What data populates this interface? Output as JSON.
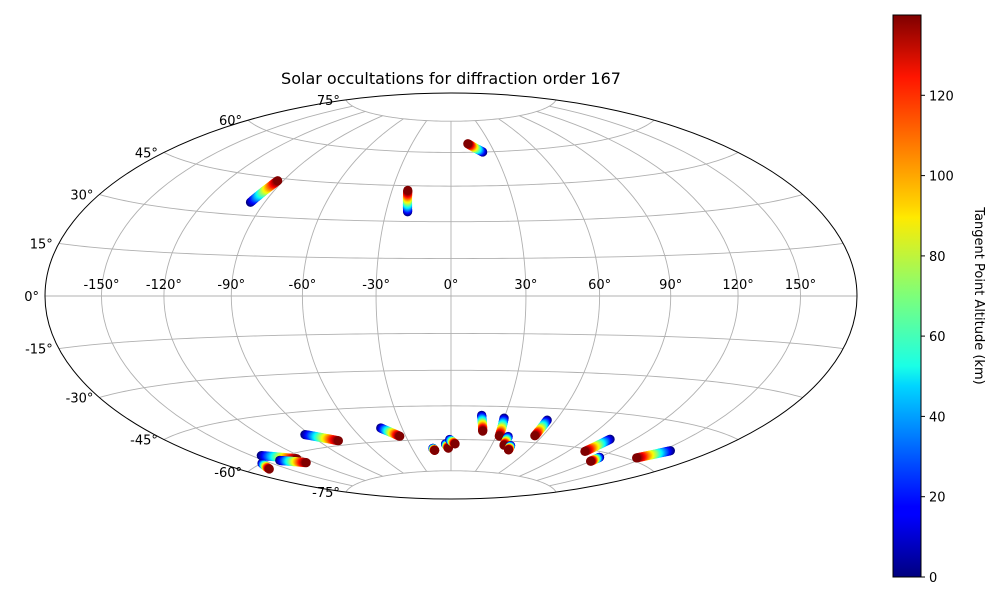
{
  "chart_data": {
    "type": "scatter",
    "title": "Solar occultations for diffraction order 167",
    "projection": "hammer",
    "grid": true,
    "longitude_ticks": [
      "-150°",
      "-120°",
      "-90°",
      "-60°",
      "-30°",
      "0°",
      "30°",
      "60°",
      "90°",
      "120°",
      "150°"
    ],
    "longitude_values": [
      -150,
      -120,
      -90,
      -60,
      -30,
      0,
      30,
      60,
      90,
      120,
      150
    ],
    "latitude_ticks": [
      "75°",
      "60°",
      "45°",
      "30°",
      "15°",
      "0°",
      "-15°",
      "-30°",
      "-45°",
      "-60°",
      "-75°"
    ],
    "latitude_values": [
      75,
      60,
      45,
      30,
      15,
      0,
      -15,
      -30,
      -45,
      -60,
      -75
    ],
    "colorbar": {
      "label": "Tangent Point Altitude (km)",
      "colormap": "jet",
      "range": [
        0,
        140
      ],
      "ticks": [
        "0",
        "20",
        "40",
        "60",
        "80",
        "100",
        "120"
      ],
      "tick_values": [
        0,
        20,
        40,
        60,
        80,
        100,
        120
      ]
    },
    "tracks": [
      {
        "lon_start": -97,
        "lat_start": 35,
        "lon_end": -93,
        "lat_end": 44
      },
      {
        "lon_start": -20,
        "lat_start": 34,
        "lon_end": -22,
        "lat_end": 43
      },
      {
        "lon_start": 22,
        "lat_start": 60,
        "lon_end": 13,
        "lat_end": 64
      },
      {
        "lon_start": -156,
        "lat_start": -60,
        "lon_end": -162,
        "lat_end": -62
      },
      {
        "lon_start": -144,
        "lat_start": -58,
        "lon_end": -126,
        "lat_end": -62
      },
      {
        "lon_start": -140,
        "lat_start": -61,
        "lon_end": -126,
        "lat_end": -64
      },
      {
        "lon_start": -93,
        "lat_start": -54,
        "lon_end": -77,
        "lat_end": -58
      },
      {
        "lon_start": -43,
        "lat_start": -54,
        "lon_end": -34,
        "lat_end": -58
      },
      {
        "lon_start": -14,
        "lat_start": -64,
        "lon_end": -13,
        "lat_end": -65
      },
      {
        "lon_start": -4,
        "lat_start": -62,
        "lon_end": -2,
        "lat_end": -64
      },
      {
        "lon_start": -1,
        "lat_start": -60,
        "lon_end": 3,
        "lat_end": -62
      },
      {
        "lon_start": 17,
        "lat_start": -49,
        "lon_end": 20,
        "lat_end": -56
      },
      {
        "lon_start": 30,
        "lat_start": -50,
        "lon_end": 32,
        "lat_end": -58
      },
      {
        "lon_start": 38,
        "lat_start": -58,
        "lon_end": 39,
        "lat_end": -62
      },
      {
        "lon_start": 44,
        "lat_start": -62,
        "lon_end": 45,
        "lat_end": -64
      },
      {
        "lon_start": 55,
        "lat_start": -50,
        "lon_end": 55,
        "lat_end": -57
      },
      {
        "lon_start": 105,
        "lat_start": -55,
        "lon_end": 102,
        "lat_end": -61
      },
      {
        "lon_start": 120,
        "lat_start": -62,
        "lon_end": 120,
        "lat_end": -64
      },
      {
        "lon_start": 155,
        "lat_start": -54,
        "lon_end": 145,
        "lat_end": -59
      }
    ]
  }
}
